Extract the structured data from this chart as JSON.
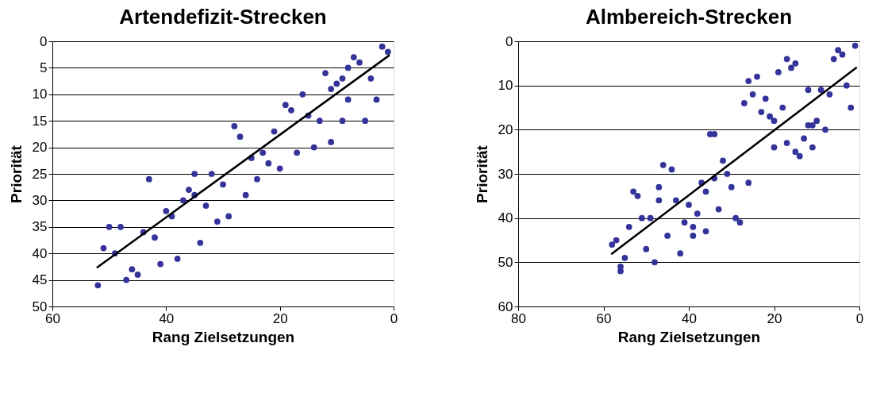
{
  "chart_data": [
    {
      "type": "scatter",
      "title": "Artendefizit-Strecken",
      "xlabel": "Rang Zielsetzungen",
      "ylabel": "Priorität",
      "xlim": [
        60,
        0
      ],
      "xticks": [
        60,
        40,
        20,
        0
      ],
      "ylim": [
        50,
        0
      ],
      "yticks": [
        0,
        5,
        10,
        15,
        20,
        25,
        30,
        35,
        40,
        45,
        50
      ],
      "grid": "y",
      "series": [
        {
          "marker": "circle",
          "color": "#333399",
          "x": [
            2,
            1,
            7,
            6,
            8,
            12,
            4,
            9,
            10,
            11,
            16,
            3,
            8,
            19,
            18,
            15,
            13,
            9,
            5,
            28,
            21,
            27,
            11,
            17,
            14,
            23,
            25,
            22,
            20,
            35,
            32,
            43,
            24,
            30,
            36,
            26,
            35,
            37,
            33,
            40,
            39,
            29,
            31,
            50,
            48,
            44,
            42,
            34,
            51,
            49,
            38,
            41,
            46,
            45,
            47,
            52
          ],
          "values": [
            1,
            2,
            3,
            4,
            5,
            6,
            7,
            7,
            8,
            9,
            10,
            11,
            11,
            12,
            13,
            14,
            15,
            15,
            15,
            16,
            17,
            18,
            19,
            21,
            20,
            21,
            22,
            23,
            24,
            25,
            25,
            26,
            26,
            27,
            28,
            29,
            29,
            30,
            31,
            32,
            33,
            33,
            34,
            35,
            35,
            36,
            37,
            38,
            39,
            40,
            41,
            42,
            43,
            44,
            45,
            46
          ]
        },
        {
          "type": "line",
          "color": "#000000",
          "x": [
            52.2,
            0.7
          ],
          "values": [
            42.7,
            2.6
          ]
        }
      ]
    },
    {
      "type": "scatter",
      "title": "Almbereich-Strecken",
      "xlabel": "Rang Zielsetzungen",
      "ylabel": "Priorität",
      "xlim": [
        80,
        0
      ],
      "xticks": [
        80,
        60,
        40,
        20,
        0
      ],
      "ylim": [
        60,
        0
      ],
      "yticks": [
        0,
        10,
        20,
        30,
        40,
        50,
        60
      ],
      "grid": "y",
      "series": [
        {
          "marker": "circle",
          "color": "#333399",
          "x": [
            1,
            5,
            4,
            6,
            17,
            15,
            16,
            19,
            24,
            26,
            3,
            12,
            9,
            25,
            7,
            22,
            27,
            2,
            18,
            23,
            21,
            20,
            10,
            12,
            11,
            8,
            35,
            34,
            13,
            17,
            20,
            11,
            15,
            14,
            32,
            46,
            44,
            31,
            34,
            26,
            37,
            30,
            47,
            36,
            53,
            52,
            47,
            43,
            40,
            38,
            33,
            51,
            49,
            29,
            28,
            41,
            39,
            54,
            36,
            39,
            45,
            57,
            58,
            50,
            42,
            55,
            48,
            56,
            56
          ],
          "values": [
            1,
            2,
            3,
            4,
            4,
            5,
            6,
            7,
            8,
            9,
            10,
            11,
            11,
            12,
            12,
            13,
            14,
            15,
            15,
            16,
            17,
            18,
            18,
            19,
            19,
            20,
            21,
            21,
            22,
            23,
            24,
            24,
            25,
            26,
            27,
            28,
            29,
            30,
            31,
            32,
            32,
            33,
            33,
            34,
            34,
            35,
            36,
            36,
            37,
            39,
            38,
            40,
            40,
            40,
            41,
            41,
            42,
            42,
            43,
            44,
            44,
            45,
            46,
            47,
            48,
            49,
            50,
            51,
            52
          ]
        },
        {
          "type": "line",
          "color": "#000000",
          "x": [
            58.2,
            0.6
          ],
          "values": [
            48.2,
            5.9
          ]
        }
      ]
    }
  ]
}
